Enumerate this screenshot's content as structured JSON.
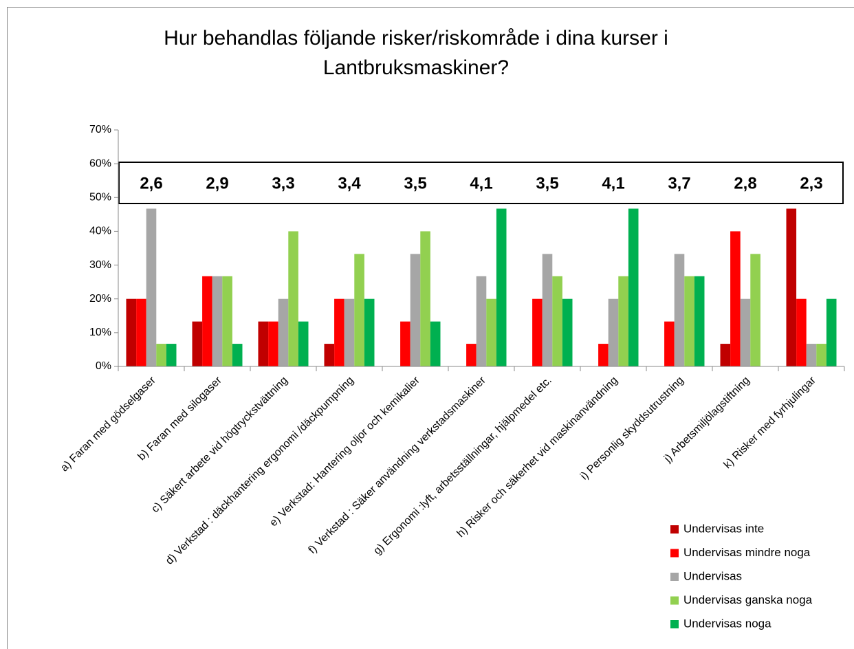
{
  "chart_data": {
    "type": "bar",
    "title": [
      "Hur behandlas följande risker/riskområde i dina kurser i",
      "Lantbruksmaskiner?"
    ],
    "categories": [
      "a) Faran med gödselgaser",
      "b) Faran med silogaser",
      "c) Säkert arbete vid högtryckstvättning",
      "d) Verkstad : däckhantering ergonomi /däckpumpning",
      "e) Verkstad: Hantering oljor och kemikalier",
      "f) Verkstad : Säker användning verkstadsmaskiner",
      "g) Ergonomi :lyft, arbetsställningar, hjälpmedel etc.",
      "h) Risker och säkerhet vid maskinanvändning",
      "i) Personlig skyddsutrustning",
      "j) Arbetsmiljölagstiftning",
      "k) Risker med fyrhjulingar"
    ],
    "series": [
      {
        "name": "Undervisas inte",
        "color": "#c00000",
        "values": [
          20,
          13.3,
          13.3,
          6.7,
          0,
          0,
          0,
          0,
          0,
          6.7,
          46.7
        ]
      },
      {
        "name": "Undervisas mindre noga",
        "color": "#ff0000",
        "values": [
          20,
          26.7,
          13.3,
          20,
          13.3,
          6.7,
          20,
          6.7,
          13.3,
          40,
          20
        ]
      },
      {
        "name": "Undervisas",
        "color": "#a6a6a6",
        "values": [
          46.7,
          26.7,
          20,
          20,
          33.3,
          26.7,
          33.3,
          20,
          33.3,
          20,
          6.7
        ]
      },
      {
        "name": "Undervisas ganska noga",
        "color": "#92d050",
        "values": [
          6.7,
          26.7,
          40,
          33.3,
          40,
          20,
          26.7,
          26.7,
          26.7,
          33.3,
          6.7
        ]
      },
      {
        "name": "Undervisas noga",
        "color": "#00b050",
        "values": [
          6.7,
          6.7,
          13.3,
          20,
          13.3,
          46.7,
          20,
          46.7,
          26.7,
          0,
          20
        ]
      }
    ],
    "annotations": [
      "2,6",
      "2,9",
      "3,3",
      "3,4",
      "3,5",
      "4,1",
      "3,5",
      "4,1",
      "3,7",
      "2,8",
      "2,3"
    ],
    "ylim": [
      0,
      70
    ],
    "yticks": [
      {
        "value": 0,
        "label": "0%"
      },
      {
        "value": 10,
        "label": "10%"
      },
      {
        "value": 20,
        "label": "20%"
      },
      {
        "value": 30,
        "label": "30%"
      },
      {
        "value": 40,
        "label": "40%"
      },
      {
        "value": 50,
        "label": "50%"
      },
      {
        "value": 60,
        "label": "60%"
      },
      {
        "value": 70,
        "label": "70%"
      }
    ],
    "legend": "bottom-right"
  }
}
